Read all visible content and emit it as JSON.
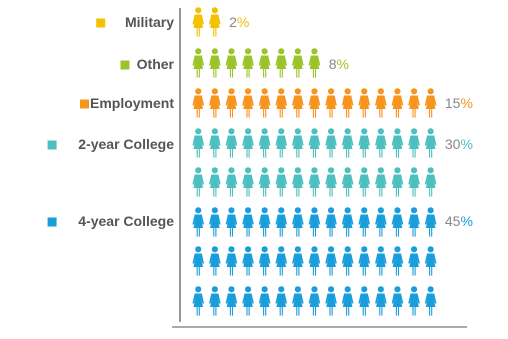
{
  "chart_data": {
    "type": "bar",
    "title": "",
    "xlabel": "",
    "ylabel": "",
    "categories": [
      "Military",
      "Other",
      "Employment",
      "2-year College",
      "4-year College"
    ],
    "values": [
      2,
      8,
      15,
      30,
      45
    ],
    "value_labels": [
      {
        "number": "2",
        "suffix": "%"
      },
      {
        "number": "8",
        "suffix": "%"
      },
      {
        "number": "15",
        "suffix": "%"
      },
      {
        "number": "30",
        "suffix": "%"
      },
      {
        "number": "45",
        "suffix": "%"
      }
    ],
    "colors": [
      "#f2c200",
      "#9dc32b",
      "#f7941e",
      "#4dbfbf",
      "#1a9edb"
    ],
    "icon": "person-icon",
    "units_per_icon": 1,
    "legend": "left",
    "grid": false,
    "axis_color": "#777777",
    "text_color": "#555555"
  }
}
